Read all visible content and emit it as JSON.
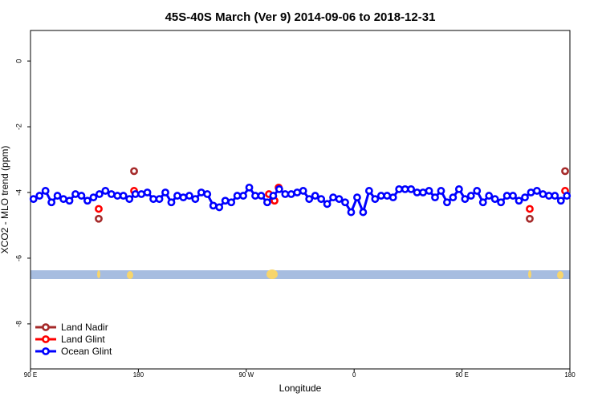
{
  "chart_data": {
    "type": "line",
    "title": "45S-40S March (Ver 9)   2014-09-06 to 2018-12-31",
    "x_label": "Longitude",
    "y_label": "XCO2 - MLO trend (ppm)",
    "xlim": [
      90,
      540
    ],
    "xticks": [
      {
        "value": 90,
        "label": "90 E"
      },
      {
        "value": 180,
        "label": "180"
      },
      {
        "value": 270,
        "label": "90 W"
      },
      {
        "value": 360,
        "label": "0"
      },
      {
        "value": 450,
        "label": "90 E"
      },
      {
        "value": 540,
        "label": "180"
      }
    ],
    "ylim": [
      -9.37,
      0.93
    ],
    "yticks": [
      0,
      -2,
      -4,
      -6,
      -8
    ],
    "legend": "bottom-left",
    "series": [
      {
        "name": "Land Nadir",
        "color": "#a52a2a",
        "line": false,
        "x": [
          146.9,
          176.4,
          506.5,
          536.0
        ],
        "values": [
          -4.8,
          -3.35,
          -4.8,
          -3.35
        ]
      },
      {
        "name": "Land Glint",
        "color": "#ff0000",
        "line": false,
        "x": [
          146.9,
          176.4,
          288.9,
          293.6,
          297.0,
          506.5,
          536.0
        ],
        "values": [
          -4.5,
          -3.95,
          -4.05,
          -4.25,
          -3.85,
          -4.5,
          -3.95
        ]
      },
      {
        "name": "Ocean Glint",
        "color": "#0000ff",
        "line": true,
        "x": [
          92.5,
          97.5,
          102.5,
          107.5,
          112.5,
          117.5,
          122.5,
          127.5,
          132.5,
          137.5,
          142.5,
          147.5,
          152.5,
          157.5,
          162.5,
          167.5,
          172.5,
          177.5,
          182.5,
          187.5,
          192.5,
          197.5,
          202.5,
          207.5,
          212.5,
          217.5,
          222.5,
          227.5,
          232.5,
          237.5,
          242.5,
          247.5,
          252.5,
          257.5,
          262.5,
          267.5,
          272.5,
          277.5,
          282.5,
          287.5,
          292.5,
          297.5,
          302.5,
          307.5,
          312.5,
          317.5,
          322.5,
          327.5,
          332.5,
          337.5,
          342.5,
          347.5,
          352.5,
          357.5,
          362.5,
          367.5,
          372.5,
          377.5,
          382.5,
          387.5,
          392.5,
          397.5,
          402.5,
          407.5,
          412.5,
          417.5,
          422.5,
          427.5,
          432.5,
          437.5,
          442.5,
          447.5,
          452.5,
          457.5,
          462.5,
          467.5,
          472.5,
          477.5,
          482.5,
          487.5,
          492.5,
          497.5,
          502.5,
          507.5,
          512.5,
          517.5,
          522.5,
          527.5,
          532.5,
          537.5
        ],
        "values": [
          -4.2,
          -4.1,
          -3.95,
          -4.3,
          -4.1,
          -4.2,
          -4.25,
          -4.05,
          -4.1,
          -4.25,
          -4.15,
          -4.05,
          -3.95,
          -4.05,
          -4.1,
          -4.1,
          -4.2,
          -4.05,
          -4.05,
          -4.0,
          -4.2,
          -4.2,
          -4.0,
          -4.3,
          -4.1,
          -4.15,
          -4.1,
          -4.2,
          -4.0,
          -4.05,
          -4.4,
          -4.45,
          -4.25,
          -4.3,
          -4.1,
          -4.1,
          -3.85,
          -4.1,
          -4.1,
          -4.3,
          -4.1,
          -3.9,
          -4.05,
          -4.05,
          -4.0,
          -3.95,
          -4.2,
          -4.1,
          -4.2,
          -4.35,
          -4.15,
          -4.2,
          -4.3,
          -4.6,
          -4.15,
          -4.6,
          -3.95,
          -4.2,
          -4.1,
          -4.1,
          -4.15,
          -3.9,
          -3.9,
          -3.9,
          -4.0,
          -4.0,
          -3.95,
          -4.15,
          -3.95,
          -4.3,
          -4.15,
          -3.9,
          -4.2,
          -4.1,
          -3.95,
          -4.3,
          -4.1,
          -4.2,
          -4.3,
          -4.1,
          -4.1,
          -4.25,
          -4.15,
          -4.0,
          -3.95,
          -4.05,
          -4.1,
          -4.1,
          -4.25,
          -4.1
        ]
      }
    ]
  }
}
